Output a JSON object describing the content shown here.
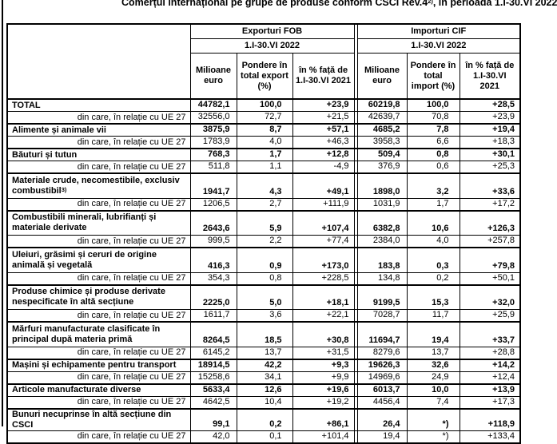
{
  "page": {
    "title_prefix": "Comerțul internațional pe grupe de produse conform CSCI Rev.4",
    "title_sup": "2)",
    "title_suffix": ", în perioada 1.I-30.VI 2022"
  },
  "table": {
    "groups": [
      {
        "label": "Exporturi FOB",
        "period": "1.I-30.VI 2022"
      },
      {
        "label": "Importuri CIF",
        "period": "1.I-30.VI 2022"
      }
    ],
    "columns": [
      "Milioane euro",
      "Pondere în total export (%)",
      "în % față de 1.I-30.VI 2021",
      "Milioane euro",
      "Pondere în total import (%)",
      "în % față de 1.I-30.VI 2021"
    ],
    "rows": [
      {
        "type": "main",
        "label": "TOTAL",
        "values": [
          "44782,1",
          "100,0",
          "+23,9",
          "60219,8",
          "100,0",
          "+28,5"
        ]
      },
      {
        "type": "sub",
        "label": "din care, în relație cu UE 27",
        "values": [
          "32556,0",
          "72,7",
          "+21,5",
          "42639,7",
          "70,8",
          "+23,9"
        ]
      },
      {
        "type": "main",
        "label": "Alimente și animale vii",
        "values": [
          "3875,9",
          "8,7",
          "+57,1",
          "4685,2",
          "7,8",
          "+19,4"
        ]
      },
      {
        "type": "sub",
        "label": "din care, în relație cu UE 27",
        "values": [
          "1783,9",
          "4,0",
          "+46,3",
          "3958,3",
          "6,6",
          "+18,3"
        ]
      },
      {
        "type": "main",
        "label": "Băuturi și tutun",
        "values": [
          "768,3",
          "1,7",
          "+12,8",
          "509,4",
          "0,8",
          "+30,1"
        ]
      },
      {
        "type": "sub",
        "label": "din care, în relație cu UE 27",
        "values": [
          "511,8",
          "1,1",
          "-4,9",
          "376,9",
          "0,6",
          "+25,3"
        ]
      },
      {
        "type": "main",
        "tall": true,
        "label": "Materiale crude, necomestibile, exclusiv combustibil",
        "sup": "3)",
        "values": [
          "1941,7",
          "4,3",
          "+49,1",
          "1898,0",
          "3,2",
          "+33,6"
        ]
      },
      {
        "type": "sub",
        "label": "din care, în relație cu UE 27",
        "values": [
          "1206,5",
          "2,7",
          "+111,9",
          "1031,9",
          "1,7",
          "+17,2"
        ]
      },
      {
        "type": "main",
        "tall": true,
        "label": "Combustibili minerali, lubrifianți și materiale derivate",
        "values": [
          "2643,6",
          "5,9",
          "+107,4",
          "6382,8",
          "10,6",
          "+126,3"
        ]
      },
      {
        "type": "sub",
        "label": "din care, în relație cu UE 27",
        "values": [
          "999,5",
          "2,2",
          "+77,4",
          "2384,0",
          "4,0",
          "+257,8"
        ]
      },
      {
        "type": "main",
        "tall": true,
        "label": "Uleiuri, grăsimi și ceruri de origine animală și vegetală",
        "values": [
          "416,3",
          "0,9",
          "+173,0",
          "183,8",
          "0,3",
          "+79,8"
        ]
      },
      {
        "type": "sub",
        "label": "din care, în relație cu UE 27",
        "values": [
          "354,3",
          "0,8",
          "+228,5",
          "134,8",
          "0,2",
          "+50,1"
        ]
      },
      {
        "type": "main",
        "tall": true,
        "label": "Produse chimice și produse derivate nespecificate în altă secțiune",
        "values": [
          "2225,0",
          "5,0",
          "+18,1",
          "9199,5",
          "15,3",
          "+32,0"
        ]
      },
      {
        "type": "sub",
        "label": "din care, în relație cu UE 27",
        "values": [
          "1611,7",
          "3,6",
          "+22,1",
          "7028,7",
          "11,7",
          "+25,9"
        ]
      },
      {
        "type": "main",
        "tall": true,
        "label": "Mărfuri manufacturate clasificate în principal după materia primă",
        "values": [
          "8264,5",
          "18,5",
          "+30,8",
          "11694,7",
          "19,4",
          "+33,7"
        ]
      },
      {
        "type": "sub",
        "label": "din care, în relație cu UE 27",
        "values": [
          "6145,2",
          "13,7",
          "+31,5",
          "8279,6",
          "13,7",
          "+28,8"
        ]
      },
      {
        "type": "main",
        "label": "Mașini și echipamente pentru transport",
        "values": [
          "18914,5",
          "42,2",
          "+9,3",
          "19626,3",
          "32,6",
          "+14,2"
        ]
      },
      {
        "type": "sub",
        "label": "din care, în relație cu UE 27",
        "values": [
          "15258,6",
          "34,1",
          "+9,9",
          "14969,6",
          "24,9",
          "+12,4"
        ]
      },
      {
        "type": "main",
        "label": "Articole manufacturate diverse",
        "values": [
          "5633,4",
          "12,6",
          "+19,6",
          "6013,7",
          "10,0",
          "+13,9"
        ]
      },
      {
        "type": "sub",
        "label": "din care, în relație cu UE 27",
        "values": [
          "4642,5",
          "10,4",
          "+19,2",
          "4456,4",
          "7,4",
          "+17,3"
        ]
      },
      {
        "type": "main",
        "label": "Bunuri necuprinse în altă secțiune din CSCI",
        "values": [
          "99,1",
          "0,2",
          "+86,1",
          "26,4",
          "*)",
          "+118,9"
        ]
      },
      {
        "type": "sub",
        "label": "din care, în relație cu UE 27",
        "values": [
          "42,0",
          "0,1",
          "+101,4",
          "19,4",
          "*)",
          "+133,4"
        ]
      }
    ]
  }
}
